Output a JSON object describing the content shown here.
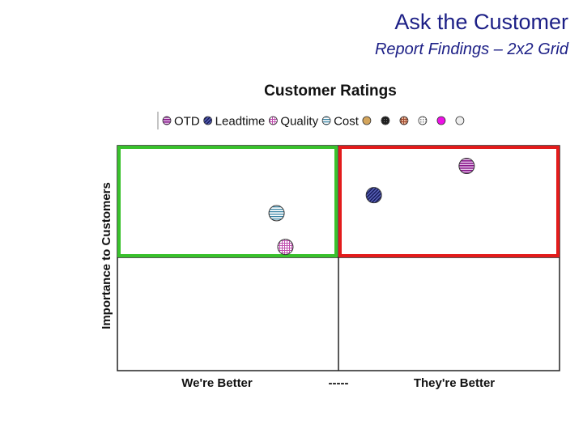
{
  "slide": {
    "title": "Ask the Customer",
    "subtitle": "Report Findings – 2x2 Grid"
  },
  "chart_data": {
    "type": "scatter",
    "title": "Customer Ratings",
    "ylabel": "Importance to Customers",
    "x_labels": [
      "We're Better",
      "-----",
      "They're Better"
    ],
    "xlim": [
      0,
      10
    ],
    "ylim": [
      0,
      10
    ],
    "grid": "2x2",
    "legend_position": "top",
    "quadrant_colors": {
      "top_left": "#39c12c",
      "top_right": "#e31b1b"
    },
    "legend": [
      {
        "name": "OTD",
        "color": "#8a1a8c",
        "pattern": "hstripe"
      },
      {
        "name": "Leadtime",
        "color": "#2a2f7c",
        "pattern": "diag"
      },
      {
        "name": "Quality",
        "color": "#d06ac0",
        "pattern": "grid"
      },
      {
        "name": "Cost",
        "color": "#3b86a6",
        "pattern": "hstripe"
      },
      {
        "name": "",
        "color": "#d4a55c",
        "pattern": "solid"
      },
      {
        "name": "",
        "color": "#202020",
        "pattern": "dots"
      },
      {
        "name": "",
        "color": "#c46b4a",
        "pattern": "grid"
      },
      {
        "name": "",
        "color": "#9a9a9a",
        "pattern": "dots"
      },
      {
        "name": "",
        "color": "#ee10e6",
        "pattern": "solid"
      },
      {
        "name": "",
        "color": "#b8b8b8",
        "pattern": "light"
      }
    ],
    "series": [
      {
        "name": "OTD",
        "x": 7.9,
        "y": 9.1
      },
      {
        "name": "Leadtime",
        "x": 5.8,
        "y": 7.8
      },
      {
        "name": "Cost",
        "x": 3.6,
        "y": 7.0
      },
      {
        "name": "Quality",
        "x": 3.8,
        "y": 5.5
      }
    ]
  }
}
